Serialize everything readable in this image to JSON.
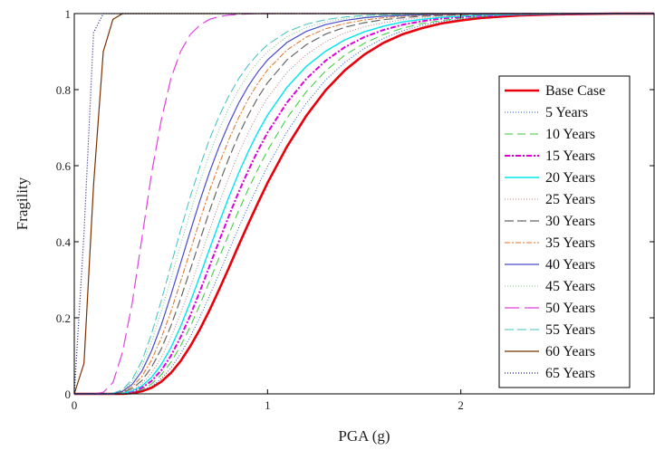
{
  "chart_data": {
    "type": "line",
    "title": "",
    "xlabel": "PGA (g)",
    "ylabel": "Fragility",
    "xlim": [
      0,
      3
    ],
    "ylim": [
      0,
      1
    ],
    "xticks": [
      0,
      1,
      2
    ],
    "xtick_labels": [
      "0",
      "1",
      "2"
    ],
    "yticks": [
      0,
      0.2,
      0.4,
      0.6,
      0.8,
      1
    ],
    "ytick_labels": [
      "0",
      "0.2",
      "0.4",
      "0.6",
      "0.8",
      "1"
    ],
    "grid": false,
    "legend_position": "right",
    "x": [
      0,
      0.05,
      0.1,
      0.15,
      0.2,
      0.25,
      0.3,
      0.35,
      0.4,
      0.45,
      0.5,
      0.55,
      0.6,
      0.65,
      0.7,
      0.75,
      0.8,
      0.85,
      0.9,
      0.95,
      1.0,
      1.1,
      1.2,
      1.3,
      1.4,
      1.5,
      1.6,
      1.7,
      1.8,
      1.9,
      2.0,
      2.1,
      2.2,
      2.3,
      2.5,
      2.8,
      3.0
    ],
    "series": [
      {
        "name": "Base Case",
        "color": "#e8000b",
        "dash": "",
        "width": 2.6,
        "values": [
          0,
          0,
          0,
          0,
          0,
          0,
          0.002,
          0.007,
          0.016,
          0.032,
          0.055,
          0.086,
          0.125,
          0.17,
          0.22,
          0.275,
          0.332,
          0.39,
          0.447,
          0.502,
          0.555,
          0.65,
          0.731,
          0.798,
          0.851,
          0.892,
          0.923,
          0.946,
          0.962,
          0.974,
          0.982,
          0.988,
          0.992,
          0.995,
          0.998,
          1.0,
          1.0
        ]
      },
      {
        "name": "5 Years",
        "color": "#2255cc",
        "dash": "1,2",
        "width": 1,
        "values": [
          0,
          0,
          0,
          0,
          0,
          0.001,
          0.003,
          0.009,
          0.02,
          0.04,
          0.068,
          0.105,
          0.15,
          0.202,
          0.258,
          0.317,
          0.377,
          0.436,
          0.493,
          0.547,
          0.598,
          0.689,
          0.764,
          0.825,
          0.872,
          0.908,
          0.935,
          0.955,
          0.969,
          0.979,
          0.986,
          0.99,
          0.994,
          0.996,
          0.998,
          1.0,
          1.0
        ]
      },
      {
        "name": "10 Years",
        "color": "#33cc33",
        "dash": "9,5",
        "width": 1,
        "values": [
          0,
          0,
          0,
          0,
          0,
          0.001,
          0.004,
          0.012,
          0.026,
          0.05,
          0.083,
          0.126,
          0.177,
          0.235,
          0.296,
          0.359,
          0.421,
          0.481,
          0.538,
          0.591,
          0.64,
          0.725,
          0.794,
          0.849,
          0.891,
          0.922,
          0.945,
          0.962,
          0.974,
          0.982,
          0.988,
          0.992,
          0.995,
          0.997,
          0.999,
          1.0,
          1.0
        ]
      },
      {
        "name": "15 Years",
        "color": "#dd00dd",
        "dash": "6,2,2,2",
        "width": 2,
        "values": [
          0,
          0,
          0,
          0,
          0,
          0.002,
          0.006,
          0.016,
          0.034,
          0.062,
          0.1,
          0.149,
          0.206,
          0.27,
          0.336,
          0.403,
          0.468,
          0.53,
          0.587,
          0.64,
          0.687,
          0.766,
          0.828,
          0.876,
          0.912,
          0.938,
          0.957,
          0.971,
          0.98,
          0.987,
          0.991,
          0.994,
          0.996,
          0.998,
          0.999,
          1.0,
          1.0
        ]
      },
      {
        "name": "20 Years",
        "color": "#00e5ee",
        "dash": "",
        "width": 1.4,
        "values": [
          0,
          0,
          0,
          0,
          0,
          0.002,
          0.008,
          0.021,
          0.043,
          0.077,
          0.122,
          0.177,
          0.241,
          0.31,
          0.381,
          0.451,
          0.518,
          0.58,
          0.637,
          0.688,
          0.733,
          0.806,
          0.861,
          0.901,
          0.931,
          0.952,
          0.967,
          0.978,
          0.985,
          0.99,
          0.993,
          0.996,
          0.997,
          0.998,
          0.999,
          1.0,
          1.0
        ]
      },
      {
        "name": "25 Years",
        "color": "#c08080",
        "dash": "1,2",
        "width": 1,
        "values": [
          0,
          0,
          0,
          0,
          0,
          0.003,
          0.01,
          0.027,
          0.055,
          0.095,
          0.148,
          0.211,
          0.281,
          0.355,
          0.43,
          0.502,
          0.57,
          0.632,
          0.687,
          0.736,
          0.778,
          0.845,
          0.892,
          0.926,
          0.949,
          0.965,
          0.976,
          0.984,
          0.989,
          0.993,
          0.995,
          0.997,
          0.998,
          0.999,
          1.0,
          1.0,
          1.0
        ]
      },
      {
        "name": "30 Years",
        "color": "#666666",
        "dash": "10,4",
        "width": 1.2,
        "values": [
          0,
          0,
          0,
          0,
          0,
          0.004,
          0.014,
          0.035,
          0.07,
          0.118,
          0.179,
          0.25,
          0.326,
          0.404,
          0.481,
          0.553,
          0.62,
          0.68,
          0.733,
          0.779,
          0.818,
          0.878,
          0.918,
          0.946,
          0.964,
          0.976,
          0.984,
          0.989,
          0.993,
          0.995,
          0.997,
          0.998,
          0.999,
          0.999,
          1.0,
          1.0,
          1.0
        ]
      },
      {
        "name": "35 Years",
        "color": "#e07020",
        "dash": "6,2,2,2",
        "width": 1,
        "values": [
          0,
          0,
          0,
          0,
          0.001,
          0.005,
          0.019,
          0.046,
          0.089,
          0.147,
          0.217,
          0.295,
          0.376,
          0.457,
          0.534,
          0.605,
          0.669,
          0.726,
          0.775,
          0.817,
          0.852,
          0.904,
          0.938,
          0.96,
          0.974,
          0.983,
          0.989,
          0.993,
          0.995,
          0.997,
          0.998,
          0.999,
          0.999,
          1.0,
          1.0,
          1.0,
          1.0
        ]
      },
      {
        "name": "40 Years",
        "color": "#4a4acc",
        "dash": "",
        "width": 1.2,
        "values": [
          0,
          0,
          0,
          0,
          0.001,
          0.007,
          0.025,
          0.06,
          0.113,
          0.181,
          0.26,
          0.343,
          0.427,
          0.508,
          0.583,
          0.651,
          0.711,
          0.764,
          0.809,
          0.847,
          0.878,
          0.924,
          0.953,
          0.971,
          0.982,
          0.989,
          0.993,
          0.995,
          0.997,
          0.998,
          0.999,
          0.999,
          1.0,
          1.0,
          1.0,
          1.0,
          1.0
        ]
      },
      {
        "name": "45 Years",
        "color": "#7cc48a",
        "dash": "1,2",
        "width": 1,
        "values": [
          0,
          0,
          0,
          0,
          0.002,
          0.009,
          0.032,
          0.074,
          0.137,
          0.216,
          0.303,
          0.392,
          0.477,
          0.558,
          0.631,
          0.696,
          0.752,
          0.8,
          0.84,
          0.873,
          0.9,
          0.939,
          0.963,
          0.978,
          0.987,
          0.992,
          0.995,
          0.997,
          0.998,
          0.999,
          0.999,
          1.0,
          1.0,
          1.0,
          1.0,
          1.0,
          1.0
        ]
      },
      {
        "name": "50 Years",
        "color": "#e040e0",
        "dash": "16,6",
        "width": 1.2,
        "values": [
          0,
          0,
          0,
          0.004,
          0.03,
          0.11,
          0.24,
          0.41,
          0.58,
          0.72,
          0.83,
          0.9,
          0.945,
          0.97,
          0.985,
          0.992,
          0.996,
          0.998,
          0.999,
          1.0,
          1.0,
          1.0,
          1.0,
          1.0,
          1.0,
          1.0,
          1.0,
          1.0,
          1.0,
          1.0,
          1.0,
          1.0,
          1.0,
          1.0,
          1.0,
          1.0,
          1.0
        ]
      },
      {
        "name": "55 Years",
        "color": "#40c0c0",
        "dash": "10,4",
        "width": 1,
        "values": [
          0,
          0,
          0,
          0,
          0.002,
          0.011,
          0.038,
          0.087,
          0.158,
          0.245,
          0.338,
          0.43,
          0.518,
          0.598,
          0.67,
          0.731,
          0.784,
          0.828,
          0.864,
          0.894,
          0.918,
          0.952,
          0.972,
          0.984,
          0.991,
          0.995,
          0.997,
          0.998,
          0.999,
          1.0,
          1.0,
          1.0,
          1.0,
          1.0,
          1.0,
          1.0,
          1.0
        ]
      },
      {
        "name": "60 Years",
        "color": "#7a3000",
        "dash": "",
        "width": 1.2,
        "values": [
          0,
          0.08,
          0.55,
          0.9,
          0.985,
          1.0,
          1.0,
          1.0,
          1.0,
          1.0,
          1.0,
          1.0,
          1.0,
          1.0,
          1.0,
          1.0,
          1.0,
          1.0,
          1.0,
          1.0,
          1.0,
          1.0,
          1.0,
          1.0,
          1.0,
          1.0,
          1.0,
          1.0,
          1.0,
          1.0,
          1.0,
          1.0,
          1.0,
          1.0,
          1.0,
          1.0,
          1.0
        ]
      },
      {
        "name": "65 Years",
        "color": "#1a1a80",
        "dash": "1,2",
        "width": 1.2,
        "values": [
          0,
          0.42,
          0.95,
          1.0,
          1.0,
          1.0,
          1.0,
          1.0,
          1.0,
          1.0,
          1.0,
          1.0,
          1.0,
          1.0,
          1.0,
          1.0,
          1.0,
          1.0,
          1.0,
          1.0,
          1.0,
          1.0,
          1.0,
          1.0,
          1.0,
          1.0,
          1.0,
          1.0,
          1.0,
          1.0,
          1.0,
          1.0,
          1.0,
          1.0,
          1.0,
          1.0,
          1.0
        ]
      }
    ]
  }
}
